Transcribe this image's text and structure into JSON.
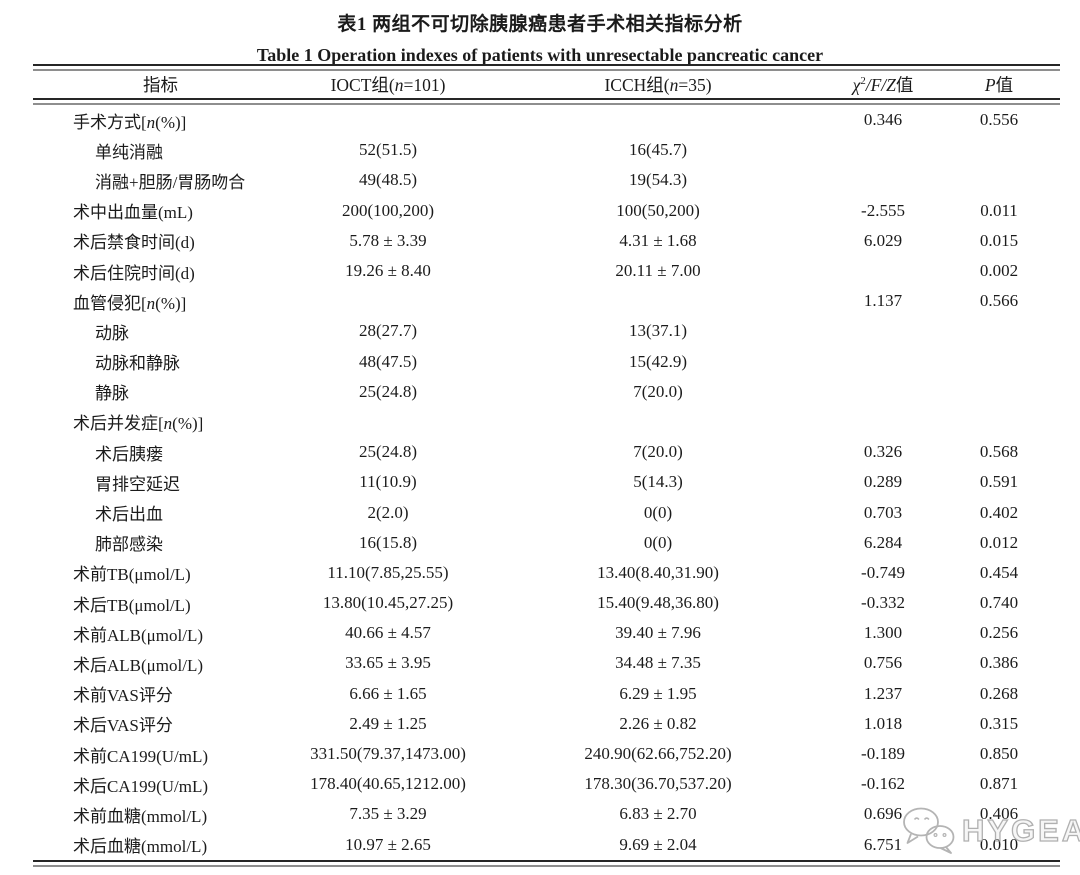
{
  "titles": {
    "zh": "表1  两组不可切除胰腺癌患者手术相关指标分析",
    "en": "Table 1  Operation indexes of patients with unresectable pancreatic cancer"
  },
  "header": {
    "indicator": "指标",
    "group1_pre": "IOCT组(",
    "group1_n": "n",
    "group1_post": "=101)",
    "group2_pre": "ICCH组(",
    "group2_n": "n",
    "group2_post": "=35)",
    "stat_chi": "χ",
    "stat_sup": "2",
    "stat_rest": "/F/Z",
    "stat_suffix": "值",
    "p_italic": "P",
    "p_suffix": "值"
  },
  "rows": [
    {
      "label": "手术方式[n(%)]",
      "indent": false,
      "ioct": "",
      "icch": "",
      "stat": "0.346",
      "p": "0.556"
    },
    {
      "label": "单纯消融",
      "indent": true,
      "ioct": "52(51.5)",
      "icch": "16(45.7)",
      "stat": "",
      "p": ""
    },
    {
      "label": "消融+胆肠/胃肠吻合",
      "indent": true,
      "ioct": "49(48.5)",
      "icch": "19(54.3)",
      "stat": "",
      "p": ""
    },
    {
      "label": "术中出血量(mL)",
      "indent": false,
      "ioct": "200(100,200)",
      "icch": "100(50,200)",
      "stat": "-2.555",
      "p": "0.011"
    },
    {
      "label": "术后禁食时间(d)",
      "indent": false,
      "ioct": "5.78 ± 3.39",
      "icch": "4.31 ± 1.68",
      "stat": "6.029",
      "p": "0.015"
    },
    {
      "label": "术后住院时间(d)",
      "indent": false,
      "ioct": "19.26 ± 8.40",
      "icch": "20.11 ± 7.00",
      "stat": "",
      "p": "0.002"
    },
    {
      "label": "血管侵犯[n(%)]",
      "indent": false,
      "ioct": "",
      "icch": "",
      "stat": "1.137",
      "p": "0.566"
    },
    {
      "label": "动脉",
      "indent": true,
      "ioct": "28(27.7)",
      "icch": "13(37.1)",
      "stat": "",
      "p": ""
    },
    {
      "label": "动脉和静脉",
      "indent": true,
      "ioct": "48(47.5)",
      "icch": "15(42.9)",
      "stat": "",
      "p": ""
    },
    {
      "label": "静脉",
      "indent": true,
      "ioct": "25(24.8)",
      "icch": "7(20.0)",
      "stat": "",
      "p": ""
    },
    {
      "label": "术后并发症[n(%)]",
      "indent": false,
      "ioct": "",
      "icch": "",
      "stat": "",
      "p": ""
    },
    {
      "label": "术后胰瘘",
      "indent": true,
      "ioct": "25(24.8)",
      "icch": "7(20.0)",
      "stat": "0.326",
      "p": "0.568"
    },
    {
      "label": "胃排空延迟",
      "indent": true,
      "ioct": "11(10.9)",
      "icch": "5(14.3)",
      "stat": "0.289",
      "p": "0.591"
    },
    {
      "label": "术后出血",
      "indent": true,
      "ioct": "2(2.0)",
      "icch": "0(0)",
      "stat": "0.703",
      "p": "0.402"
    },
    {
      "label": "肺部感染",
      "indent": true,
      "ioct": "16(15.8)",
      "icch": "0(0)",
      "stat": "6.284",
      "p": "0.012"
    },
    {
      "label": "术前TB(μmol/L)",
      "indent": false,
      "ioct": "11.10(7.85,25.55)",
      "icch": "13.40(8.40,31.90)",
      "stat": "-0.749",
      "p": "0.454"
    },
    {
      "label": "术后TB(μmol/L)",
      "indent": false,
      "ioct": "13.80(10.45,27.25)",
      "icch": "15.40(9.48,36.80)",
      "stat": "-0.332",
      "p": "0.740"
    },
    {
      "label": "术前ALB(μmol/L)",
      "indent": false,
      "ioct": "40.66 ± 4.57",
      "icch": "39.40 ± 7.96",
      "stat": "1.300",
      "p": "0.256"
    },
    {
      "label": "术后ALB(μmol/L)",
      "indent": false,
      "ioct": "33.65 ± 3.95",
      "icch": "34.48 ± 7.35",
      "stat": "0.756",
      "p": "0.386"
    },
    {
      "label": "术前VAS评分",
      "indent": false,
      "ioct": "6.66 ± 1.65",
      "icch": "6.29 ± 1.95",
      "stat": "1.237",
      "p": "0.268"
    },
    {
      "label": "术后VAS评分",
      "indent": false,
      "ioct": "2.49 ± 1.25",
      "icch": "2.26 ± 0.82",
      "stat": "1.018",
      "p": "0.315"
    },
    {
      "label": "术前CA199(U/mL)",
      "indent": false,
      "ioct": "331.50(79.37,1473.00)",
      "icch": "240.90(62.66,752.20)",
      "stat": "-0.189",
      "p": "0.850"
    },
    {
      "label": "术后CA199(U/mL)",
      "indent": false,
      "ioct": "178.40(40.65,1212.00)",
      "icch": "178.30(36.70,537.20)",
      "stat": "-0.162",
      "p": "0.871"
    },
    {
      "label": "术前血糖(mmol/L)",
      "indent": false,
      "ioct": "7.35 ± 3.29",
      "icch": "6.83 ± 2.70",
      "stat": "0.696",
      "p": "0.406"
    },
    {
      "label": "术后血糖(mmol/L)",
      "indent": false,
      "ioct": "10.97 ± 2.65",
      "icch": "9.69 ± 2.04",
      "stat": "6.751",
      "p": "0.010"
    }
  ],
  "watermark": {
    "text": "HYGEA",
    "icon": "wechat-chat-bubbles"
  },
  "colors": {
    "background": "#ffffff",
    "text": "#1b1b1b",
    "rule_dark": "#262626",
    "rule_gray": "#8e8e8e",
    "watermark": "#a3a3a3"
  }
}
